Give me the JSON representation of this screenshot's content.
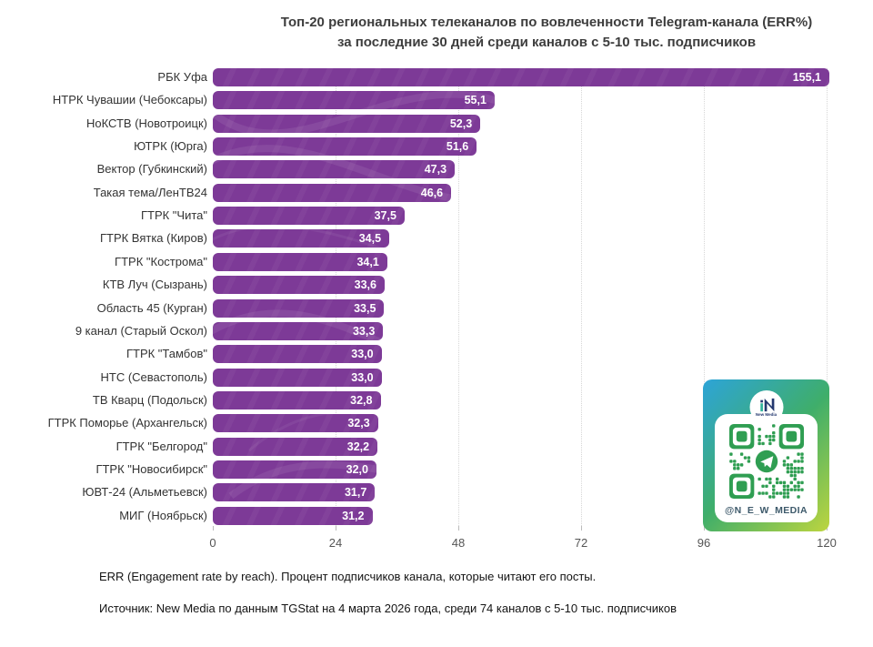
{
  "chart_data": {
    "type": "bar",
    "orientation": "horizontal",
    "title": "Топ-20 региональных телеканалов по вовлеченности Telegram-канала (ERR%)",
    "subtitle": "за последние 30 дней среди каналов с 5-10 тыс. подписчиков",
    "categories": [
      "РБК Уфа",
      "НТРК Чувашии (Чебоксары)",
      "НоКСТВ (Новотроицк)",
      "ЮТРК (Юрга)",
      "Вектор (Губкинский)",
      "Такая тема/ЛенТВ24",
      "ГТРК \"Чита\"",
      "ГТРК Вятка (Киров)",
      "ГТРК \"Кострома\"",
      "КТВ Луч (Сызрань)",
      "Область 45 (Курган)",
      "9 канал (Старый Оскол)",
      "ГТРК \"Тамбов\"",
      "НТС (Севастополь)",
      "ТВ Кварц (Подольск)",
      "ГТРК Поморье (Архангельск)",
      "ГТРК \"Белгород\"",
      "ГТРК \"Новосибирск\"",
      "ЮВТ-24 (Альметьевск)",
      "МИГ (Ноябрьск)"
    ],
    "values": [
      155.1,
      55.1,
      52.3,
      51.6,
      47.3,
      46.6,
      37.5,
      34.5,
      34.1,
      33.6,
      33.5,
      33.3,
      33.0,
      33.0,
      32.8,
      32.3,
      32.2,
      32.0,
      31.7,
      31.2
    ],
    "value_labels": [
      "155,1",
      "55,1",
      "52,3",
      "51,6",
      "47,3",
      "46,6",
      "37,5",
      "34,5",
      "34,1",
      "33,6",
      "33,5",
      "33,3",
      "33,0",
      "33,0",
      "32,8",
      "32,3",
      "32,2",
      "32,0",
      "31,7",
      "31,2"
    ],
    "xlabel": "",
    "ylabel": "",
    "xlim": [
      0,
      120
    ],
    "x_ticks": [
      0,
      24,
      48,
      72,
      96,
      120
    ],
    "grid": "vertical-dotted",
    "legend": "none",
    "bar_color": "#7d3a97",
    "value_label_color": "#ffffff"
  },
  "footer": {
    "note": "ERR (Engagement rate by reach). Процент подписчиков канала, которые читают его посты.",
    "source": "Источник: New Media по данным TGStat на 4 марта 2026 года, среди 74 каналов с 5-10 тыс. подписчиков"
  },
  "qr_card": {
    "handle": "@N_E_W_MEDIA",
    "logo_caption": "New Media",
    "gradient": [
      "#2da4d8",
      "#3fae6a",
      "#bdd53f"
    ],
    "qr_color": "#2f9e52",
    "logo_navy": "#24386f",
    "logo_teal": "#2fb39a"
  }
}
